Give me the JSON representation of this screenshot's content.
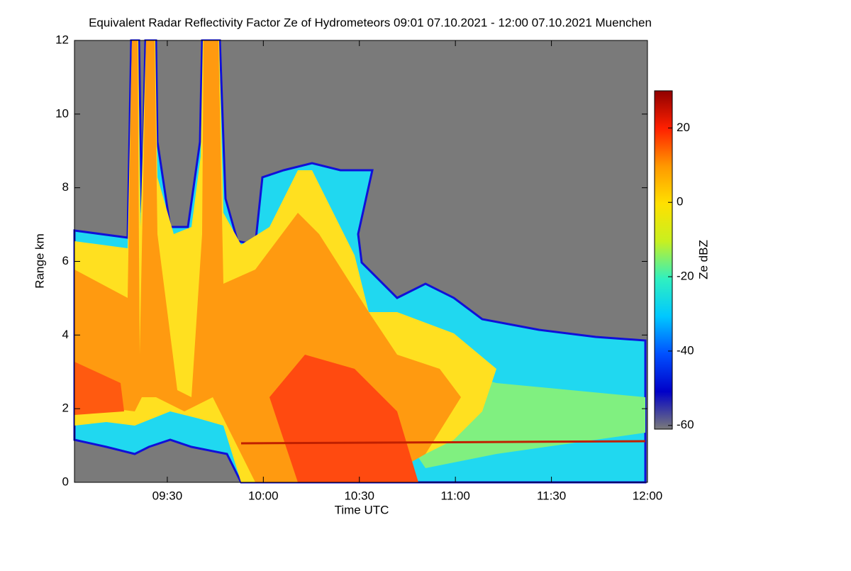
{
  "chart_data": {
    "type": "heatmap",
    "title": "Equivalent Radar Reflectivity Factor Ze of Hydrometeors   09:01 07.10.2021 - 12:00 07.10.2021 Muenchen",
    "x_label": "Time UTC",
    "y_label": "Range km",
    "xlim": [
      "09:01",
      "12:00"
    ],
    "xticks": [
      "09:30",
      "10:00",
      "10:30",
      "11:00",
      "11:30",
      "12:00"
    ],
    "ylim": [
      0,
      12
    ],
    "yticks": [
      0,
      2,
      4,
      6,
      8,
      10,
      12
    ],
    "colorbar": {
      "label": "Ze dBZ",
      "lim": [
        -61,
        30
      ],
      "ticks": [
        -60,
        -40,
        -20,
        0,
        20
      ],
      "colormap": [
        "#7a7a7a",
        "#0000c8",
        "#0050ff",
        "#00c8ff",
        "#30f0c0",
        "#c8f020",
        "#ffe000",
        "#ff9800",
        "#ff2000",
        "#900000"
      ]
    }
  }
}
